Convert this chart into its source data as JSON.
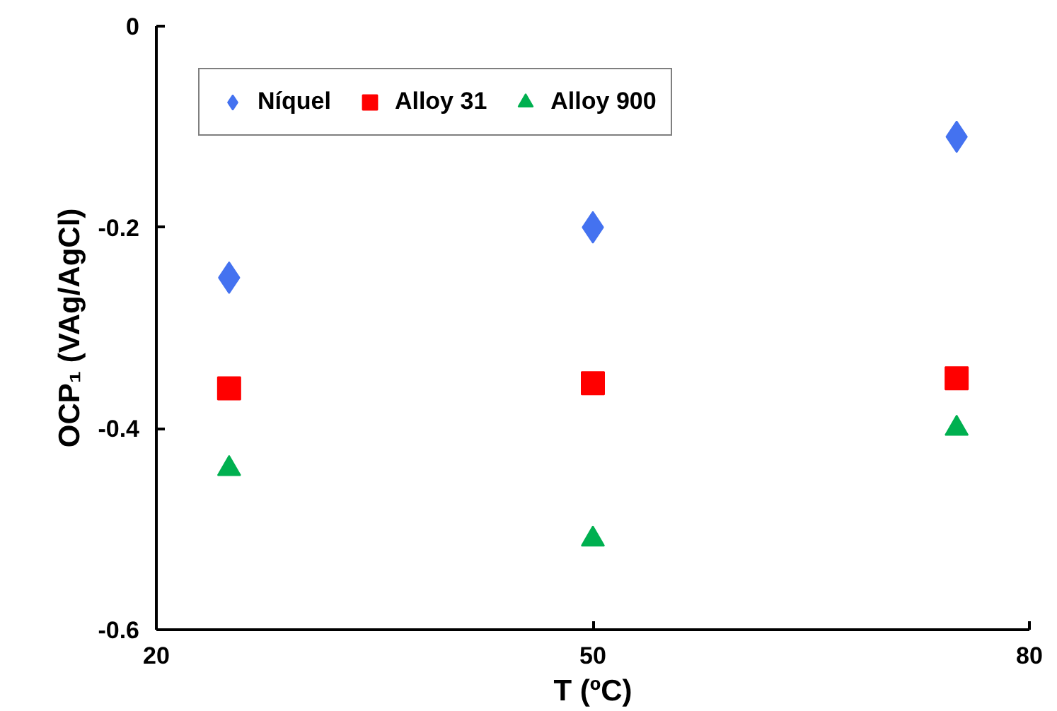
{
  "chart_data": {
    "type": "scatter",
    "xlabel": "T (ºC)",
    "ylabel": "OCP₁ (VAg/AgCl)",
    "x": [
      25,
      50,
      75
    ],
    "series": [
      {
        "name": "Níquel",
        "color": "#4472f0",
        "marker": "diamond",
        "values": [
          -0.25,
          -0.2,
          -0.11
        ]
      },
      {
        "name": "Alloy 31",
        "color": "#ff0000",
        "marker": "square",
        "values": [
          -0.36,
          -0.355,
          -0.35
        ]
      },
      {
        "name": "Alloy 900",
        "color": "#00b050",
        "marker": "triangle",
        "values": [
          -0.44,
          -0.51,
          -0.4
        ]
      }
    ],
    "xlim": [
      20,
      80
    ],
    "xticks": [
      20,
      50,
      80
    ],
    "ylim": [
      -0.6,
      0
    ],
    "yticks": [
      0,
      -0.2,
      -0.4,
      -0.6
    ],
    "grid": false,
    "legend": "top left"
  }
}
